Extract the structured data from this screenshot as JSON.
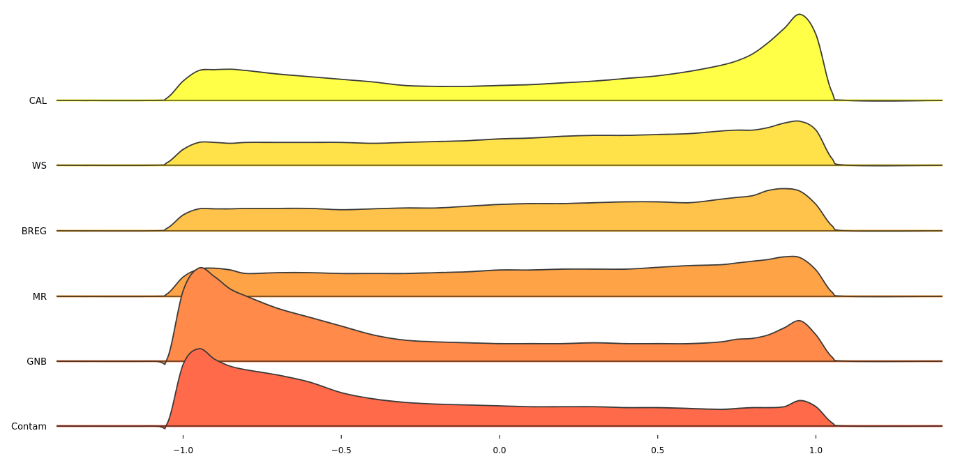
{
  "chart_data": {
    "type": "area",
    "subtype": "ridgeline",
    "title": "",
    "xlabel": "",
    "ylabel": "",
    "xlim": [
      -1.4,
      1.4
    ],
    "x_ticks": [
      -1.0,
      -0.5,
      0.0,
      0.5,
      1.0
    ],
    "x_tick_labels": [
      "−1.0",
      "−0.5",
      "0.0",
      "0.5",
      "1.0"
    ],
    "grid": false,
    "legend": "none",
    "x": [
      -1.4,
      -1.1,
      -1.05,
      -1.0,
      -0.95,
      -0.9,
      -0.85,
      -0.8,
      -0.7,
      -0.6,
      -0.5,
      -0.4,
      -0.3,
      -0.2,
      -0.1,
      0.0,
      0.1,
      0.2,
      0.3,
      0.4,
      0.5,
      0.6,
      0.7,
      0.75,
      0.8,
      0.85,
      0.9,
      0.95,
      1.0,
      1.05,
      1.1,
      1.4
    ],
    "series": [
      {
        "name": "CAL",
        "color": "#ffff47",
        "values": [
          0.0,
          0.0,
          0.03,
          0.22,
          0.34,
          0.35,
          0.355,
          0.34,
          0.3,
          0.27,
          0.24,
          0.21,
          0.17,
          0.16,
          0.16,
          0.17,
          0.18,
          0.2,
          0.22,
          0.25,
          0.28,
          0.33,
          0.4,
          0.45,
          0.53,
          0.66,
          0.82,
          0.98,
          0.75,
          0.1,
          0.0,
          0.0
        ]
      },
      {
        "name": "WS",
        "color": "#ffe24a",
        "values": [
          0.0,
          0.0,
          0.03,
          0.18,
          0.26,
          0.26,
          0.25,
          0.26,
          0.26,
          0.26,
          0.26,
          0.25,
          0.26,
          0.27,
          0.28,
          0.3,
          0.31,
          0.33,
          0.34,
          0.34,
          0.35,
          0.36,
          0.39,
          0.4,
          0.4,
          0.43,
          0.48,
          0.5,
          0.4,
          0.08,
          0.0,
          0.0
        ]
      },
      {
        "name": "BREG",
        "color": "#ffc24a",
        "values": [
          0.0,
          0.0,
          0.03,
          0.18,
          0.25,
          0.25,
          0.25,
          0.255,
          0.255,
          0.255,
          0.24,
          0.25,
          0.26,
          0.26,
          0.28,
          0.3,
          0.31,
          0.31,
          0.32,
          0.33,
          0.33,
          0.32,
          0.36,
          0.38,
          0.4,
          0.46,
          0.48,
          0.45,
          0.3,
          0.06,
          0.0,
          0.0
        ]
      },
      {
        "name": "MR",
        "color": "#ffa347",
        "values": [
          0.0,
          0.0,
          0.03,
          0.22,
          0.31,
          0.32,
          0.3,
          0.26,
          0.27,
          0.27,
          0.26,
          0.26,
          0.26,
          0.27,
          0.28,
          0.3,
          0.3,
          0.31,
          0.31,
          0.31,
          0.33,
          0.35,
          0.36,
          0.38,
          0.4,
          0.42,
          0.45,
          0.44,
          0.3,
          0.05,
          0.0,
          0.0
        ]
      },
      {
        "name": "GNB",
        "color": "#ff8a4a",
        "values": [
          0.0,
          0.0,
          0.03,
          0.8,
          1.06,
          0.96,
          0.82,
          0.74,
          0.6,
          0.5,
          0.4,
          0.3,
          0.24,
          0.22,
          0.21,
          0.2,
          0.2,
          0.2,
          0.21,
          0.2,
          0.2,
          0.2,
          0.22,
          0.25,
          0.26,
          0.3,
          0.38,
          0.46,
          0.3,
          0.05,
          0.0,
          0.0
        ]
      },
      {
        "name": "Contam",
        "color": "#ff6a4a",
        "values": [
          0.0,
          0.0,
          0.03,
          0.7,
          0.88,
          0.76,
          0.68,
          0.64,
          0.58,
          0.5,
          0.38,
          0.31,
          0.27,
          0.25,
          0.24,
          0.23,
          0.22,
          0.22,
          0.22,
          0.21,
          0.21,
          0.2,
          0.19,
          0.2,
          0.21,
          0.21,
          0.22,
          0.29,
          0.22,
          0.04,
          0.0,
          0.0
        ]
      }
    ]
  },
  "colors": {
    "outline": "#3a3a3a",
    "background": "#ffffff"
  }
}
